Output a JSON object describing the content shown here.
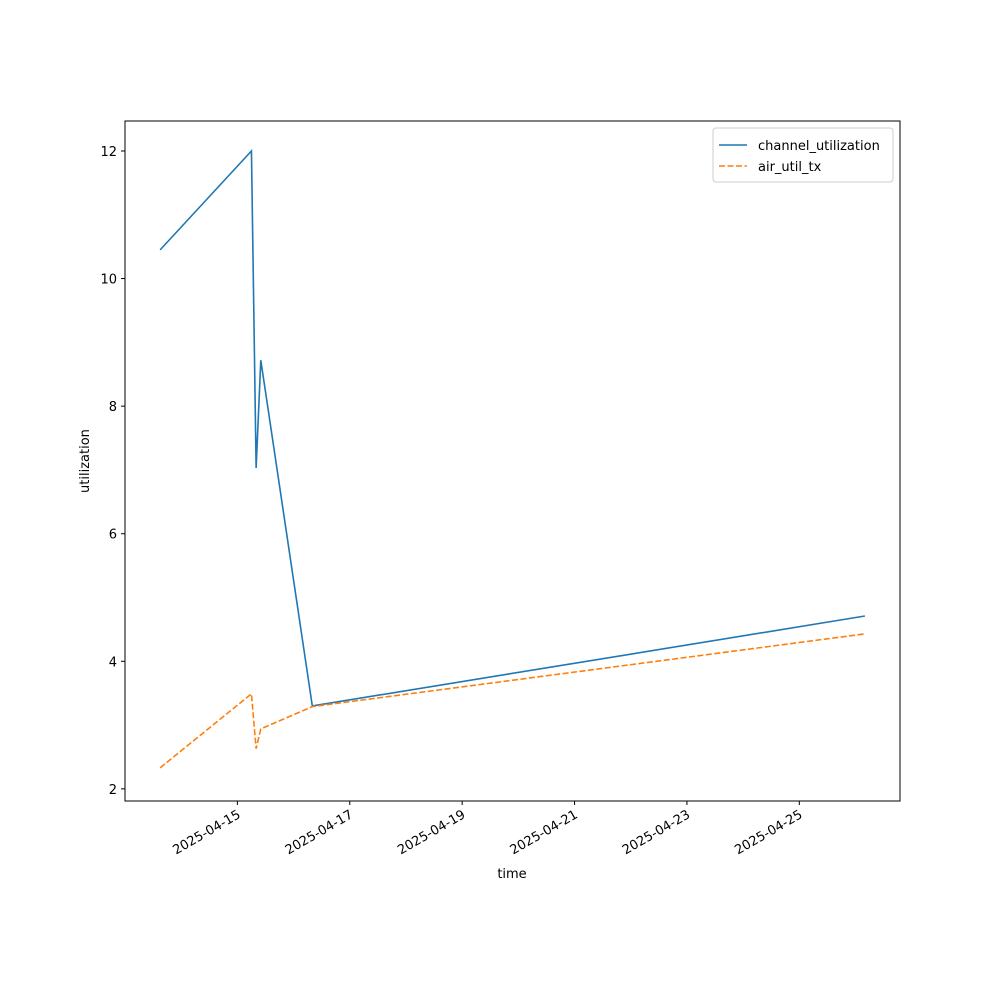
{
  "chart_data": {
    "type": "line",
    "x_label": "time",
    "y_label": "utilization",
    "x": [
      "2025-04-13 15:00",
      "2025-04-15 06:00",
      "2025-04-15 08:00",
      "2025-04-15 10:00",
      "2025-04-16 08:00",
      "2025-04-26 04:00"
    ],
    "series": [
      {
        "name": "channel_utilization",
        "color": "#1f77b4",
        "dash": "solid",
        "values": [
          10.45,
          12.0,
          7.03,
          8.72,
          3.3,
          4.71
        ]
      },
      {
        "name": "air_util_tx",
        "color": "#ff7f0e",
        "dash": "dashed",
        "values": [
          2.33,
          3.49,
          2.63,
          2.94,
          3.29,
          4.43
        ]
      }
    ],
    "xlim": [
      "2025-04-13 00:00",
      "2025-04-26 19:00"
    ],
    "xticks": [
      "2025-04-15",
      "2025-04-17",
      "2025-04-19",
      "2025-04-21",
      "2025-04-23",
      "2025-04-25"
    ],
    "ylim": [
      1.81,
      12.47
    ],
    "yticks": [
      2,
      4,
      6,
      8,
      10,
      12
    ],
    "grid": false,
    "legend": "upper right"
  }
}
